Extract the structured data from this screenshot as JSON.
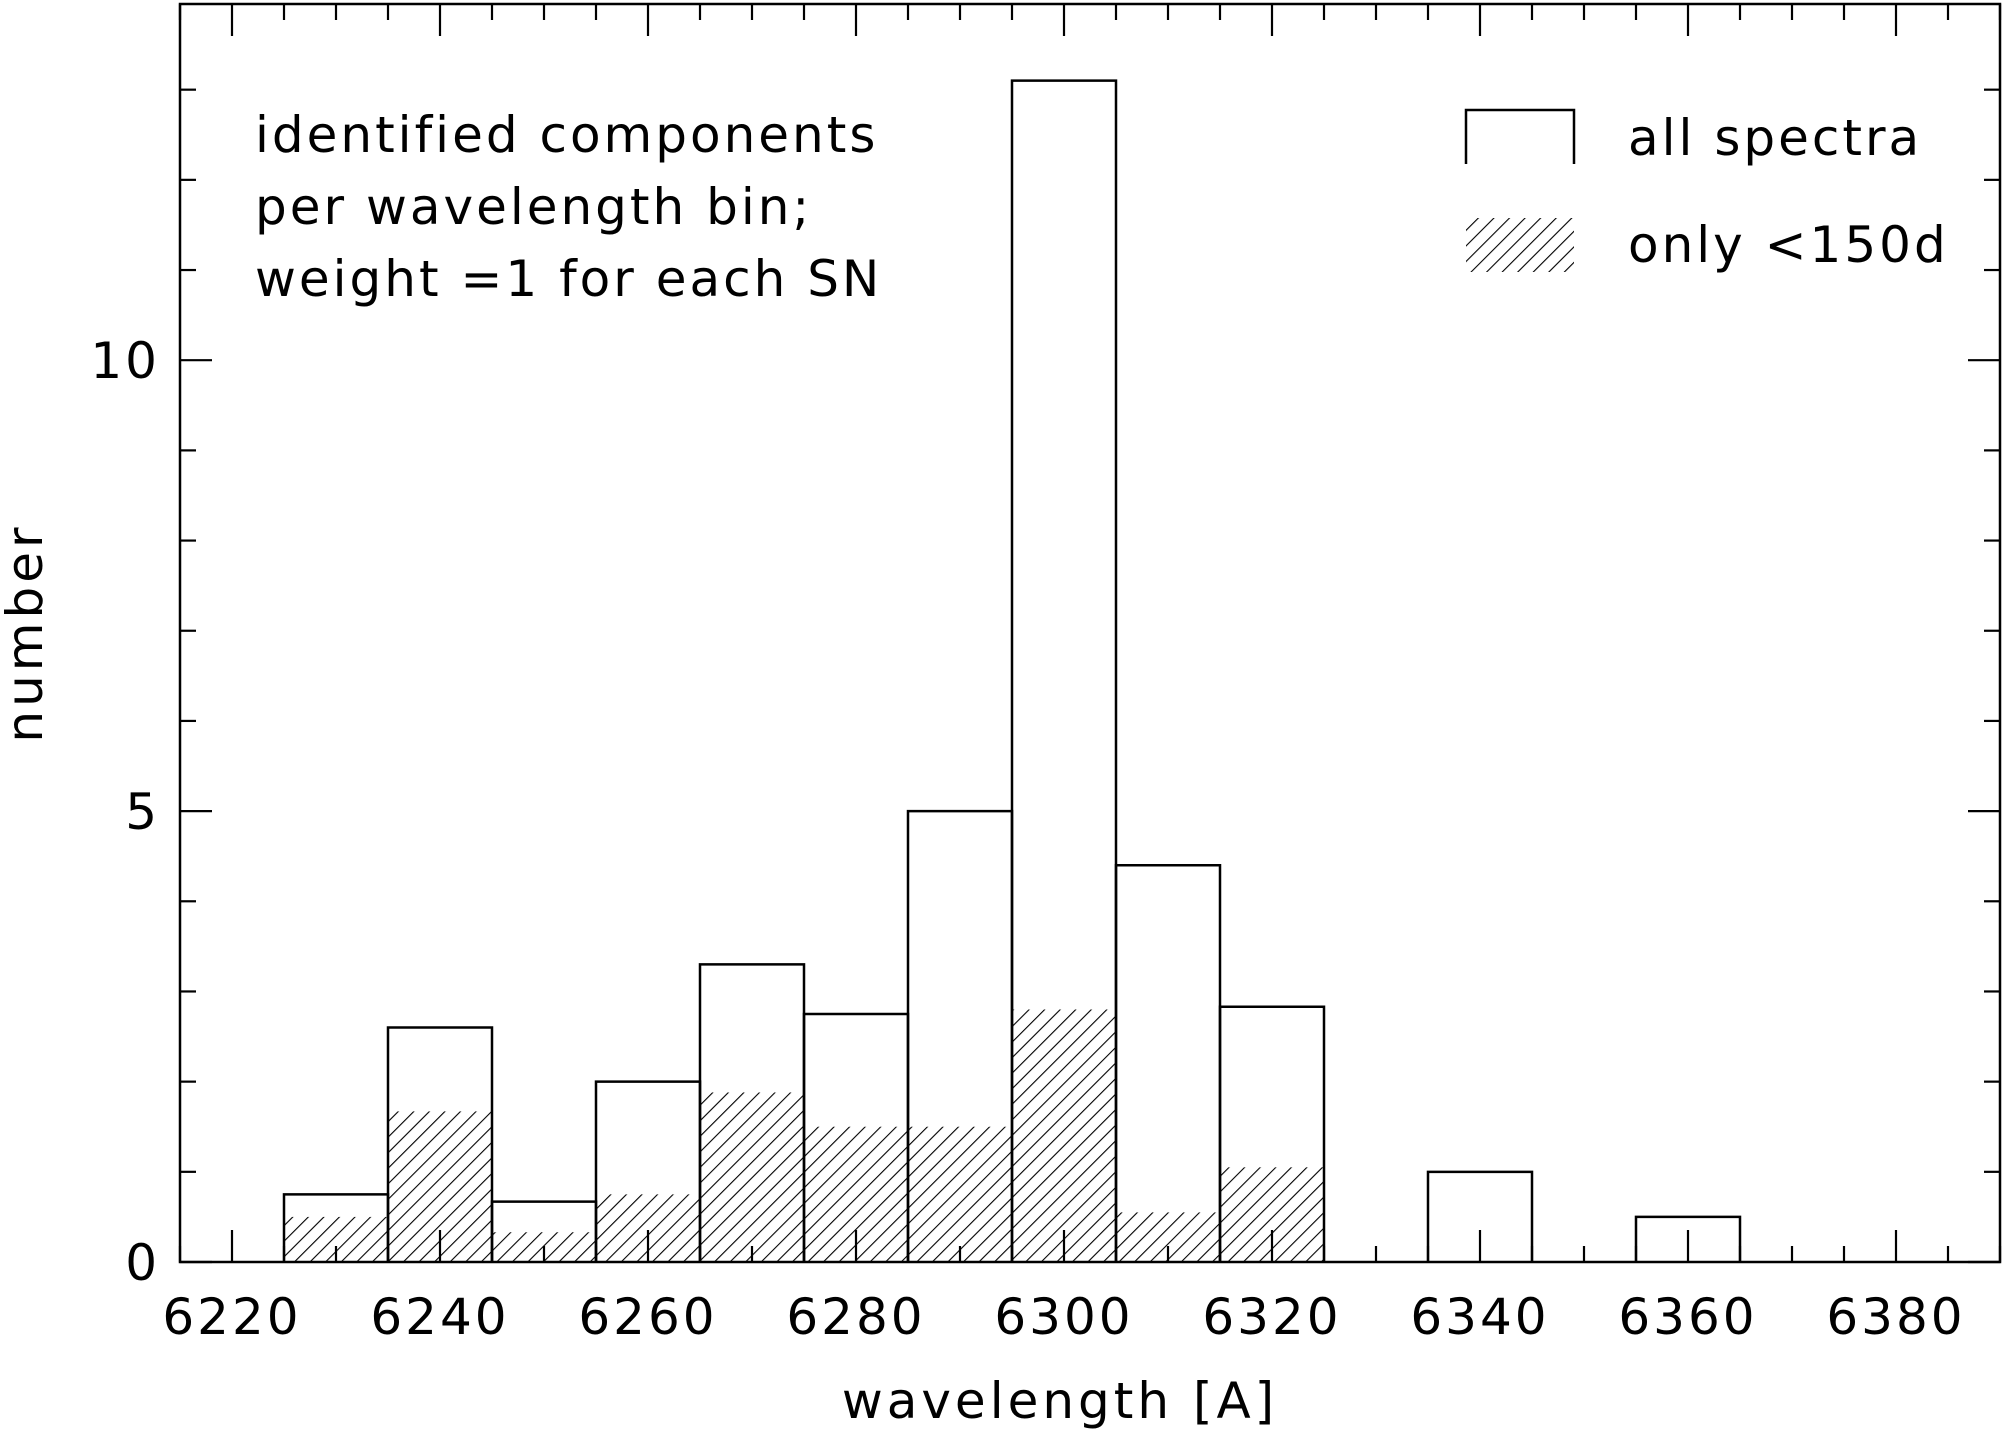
{
  "chart_data": {
    "type": "bar",
    "title": "",
    "xlabel": "wavelength [A]",
    "ylabel": "number",
    "xlim": [
      6215,
      6390
    ],
    "ylim": [
      0,
      13.95
    ],
    "x_ticks": [
      6220,
      6240,
      6260,
      6280,
      6300,
      6320,
      6340,
      6360,
      6380
    ],
    "x_minor_tick_step": 5,
    "y_ticks": [
      0,
      5,
      10
    ],
    "y_minor_tick_step": 1,
    "grid": false,
    "legend_position": "top-right",
    "annotation": [
      "identified components",
      "per wavelength bin;",
      "weight =1 for each SN"
    ],
    "bin_width": 10,
    "series": [
      {
        "name": "all spectra",
        "style": "outline",
        "color": "#000000",
        "bins": [
          {
            "x0": 6225,
            "x1": 6235,
            "value": 0.75
          },
          {
            "x0": 6235,
            "x1": 6245,
            "value": 2.6
          },
          {
            "x0": 6245,
            "x1": 6255,
            "value": 0.67
          },
          {
            "x0": 6255,
            "x1": 6265,
            "value": 2.0
          },
          {
            "x0": 6265,
            "x1": 6275,
            "value": 3.3
          },
          {
            "x0": 6275,
            "x1": 6285,
            "value": 2.75
          },
          {
            "x0": 6285,
            "x1": 6295,
            "value": 5.0
          },
          {
            "x0": 6295,
            "x1": 6305,
            "value": 13.1
          },
          {
            "x0": 6305,
            "x1": 6315,
            "value": 4.4
          },
          {
            "x0": 6315,
            "x1": 6325,
            "value": 2.83
          },
          {
            "x0": 6325,
            "x1": 6335,
            "value": 0
          },
          {
            "x0": 6335,
            "x1": 6345,
            "value": 1.0
          },
          {
            "x0": 6345,
            "x1": 6355,
            "value": 0
          },
          {
            "x0": 6355,
            "x1": 6365,
            "value": 0.5
          }
        ]
      },
      {
        "name": "only <150d",
        "style": "hatched",
        "color": "#000000",
        "bins": [
          {
            "x0": 6225,
            "x1": 6235,
            "value": 0.5
          },
          {
            "x0": 6235,
            "x1": 6245,
            "value": 1.67
          },
          {
            "x0": 6245,
            "x1": 6255,
            "value": 0.33
          },
          {
            "x0": 6255,
            "x1": 6265,
            "value": 0.75
          },
          {
            "x0": 6265,
            "x1": 6275,
            "value": 1.88
          },
          {
            "x0": 6275,
            "x1": 6285,
            "value": 1.5
          },
          {
            "x0": 6285,
            "x1": 6295,
            "value": 1.5
          },
          {
            "x0": 6295,
            "x1": 6305,
            "value": 2.8
          },
          {
            "x0": 6305,
            "x1": 6315,
            "value": 0.55
          },
          {
            "x0": 6315,
            "x1": 6325,
            "value": 1.05
          }
        ]
      }
    ]
  }
}
